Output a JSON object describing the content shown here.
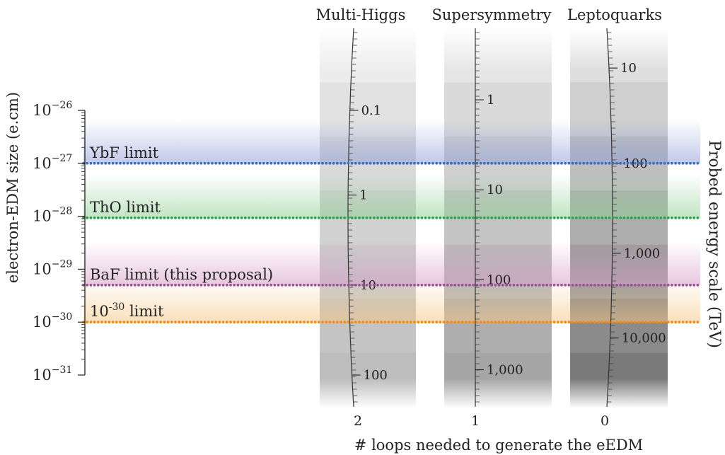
{
  "chart_data": {
    "type": "scatter",
    "title": "",
    "left_axis": {
      "label": "electron-EDM size (e.cm)",
      "scale": "log",
      "range": [
        1e-31,
        1e-26
      ],
      "tick_labels": [
        {
          "base": "10",
          "exp": "−26",
          "value": -26
        },
        {
          "base": "10",
          "exp": "−27",
          "value": -27
        },
        {
          "base": "10",
          "exp": "−28",
          "value": -28
        },
        {
          "base": "10",
          "exp": "−29",
          "value": -29
        },
        {
          "base": "10",
          "exp": "−30",
          "value": -30
        },
        {
          "base": "10",
          "exp": "−31",
          "value": -31
        }
      ]
    },
    "right_axis": {
      "label": "Probed energy scale (TeV)"
    },
    "x_axis": {
      "label": "# loops needed to generate the eEDM",
      "tick_labels": [
        "2",
        "1",
        "0"
      ]
    },
    "limits": [
      {
        "label": "YbF limit",
        "log10_value": -27.0,
        "color": "#3a6fc4",
        "band": "#8d9cd6"
      },
      {
        "label": "ThO limit",
        "log10_value": -28.03,
        "color": "#2ca24a",
        "band": "#8fcf94"
      },
      {
        "label": "BaF limit (this proposal)",
        "log10_value": -29.3,
        "color": "#9b4e9e",
        "band": "#d39ac6"
      },
      {
        "label_base": "10",
        "label_exp": "-30",
        "label_rest": " limit",
        "log10_value": -30.0,
        "color": "#f08c1c",
        "band": "#f6c784"
      }
    ],
    "models": [
      {
        "name": "Multi-Higgs",
        "loops": 2,
        "energy_ticks": [
          {
            "label": "0.1",
            "value": 0.1,
            "log10_edm": -26.0
          },
          {
            "label": "1",
            "value": 1,
            "log10_edm": -27.6
          },
          {
            "label": "10",
            "value": 10,
            "log10_edm": -29.3
          },
          {
            "label": "100",
            "value": 100,
            "log10_edm": -31.0
          }
        ]
      },
      {
        "name": "Supersymmetry",
        "loops": 1,
        "energy_ticks": [
          {
            "label": "1",
            "value": 1,
            "log10_edm": -25.8
          },
          {
            "label": "10",
            "value": 10,
            "log10_edm": -27.5
          },
          {
            "label": "100",
            "value": 100,
            "log10_edm": -29.2
          },
          {
            "label": "1,000",
            "value": 1000,
            "log10_edm": -30.9
          }
        ]
      },
      {
        "name": "Leptoquarks",
        "loops": 0,
        "energy_ticks": [
          {
            "label": "10",
            "value": 10,
            "log10_edm": -25.2
          },
          {
            "label": "100",
            "value": 100,
            "log10_edm": -27.0
          },
          {
            "label": "1,000",
            "value": 1000,
            "log10_edm": -28.7
          },
          {
            "label": "10,000",
            "value": 10000,
            "log10_edm": -30.3
          }
        ]
      }
    ]
  }
}
